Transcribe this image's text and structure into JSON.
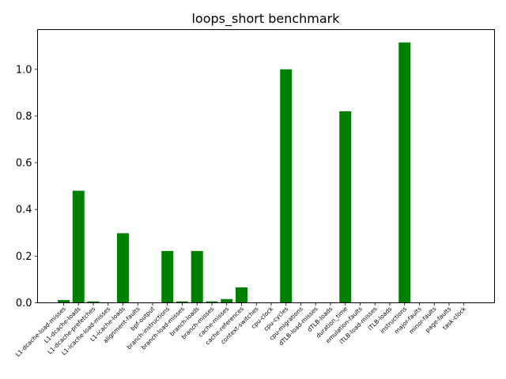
{
  "chart_data": {
    "type": "bar",
    "title": "loops_short benchmark",
    "xlabel": "",
    "ylabel": "",
    "ylim": [
      0,
      1.17
    ],
    "yticks": [
      "0.0",
      "0.2",
      "0.4",
      "0.6",
      "0.8",
      "1.0"
    ],
    "bar_color": "#008000",
    "grid": false,
    "categories": [
      "L1-dcache-load-misses",
      "L1-dcache-loads",
      "L1-dcache-prefetches",
      "L1-icache-load-misses",
      "L1-icache-loads",
      "alignment-faults",
      "bpf-output",
      "branch-instructions",
      "branch-load-misses",
      "branch-loads",
      "branch-misses",
      "cache-misses",
      "cache-references",
      "context-switches",
      "cpu-clock",
      "cpu-cycles",
      "cpu-migrations",
      "dTLB-load-misses",
      "dTLB-loads",
      "duration_time",
      "emulation-faults",
      "iTLB-load-misses",
      "iTLB-loads",
      "instructions",
      "major-faults",
      "minor-faults",
      "page-faults",
      "task-clock"
    ],
    "values": [
      0.012,
      0.48,
      0.006,
      0.002,
      0.298,
      0.0,
      0.0,
      0.222,
      0.006,
      0.222,
      0.006,
      0.016,
      0.066,
      0.0,
      0.0,
      1.0,
      0.0,
      0.0,
      0.002,
      0.82,
      0.0,
      0.0,
      0.0,
      1.115,
      0.0,
      0.0,
      0.0,
      0.0
    ]
  }
}
